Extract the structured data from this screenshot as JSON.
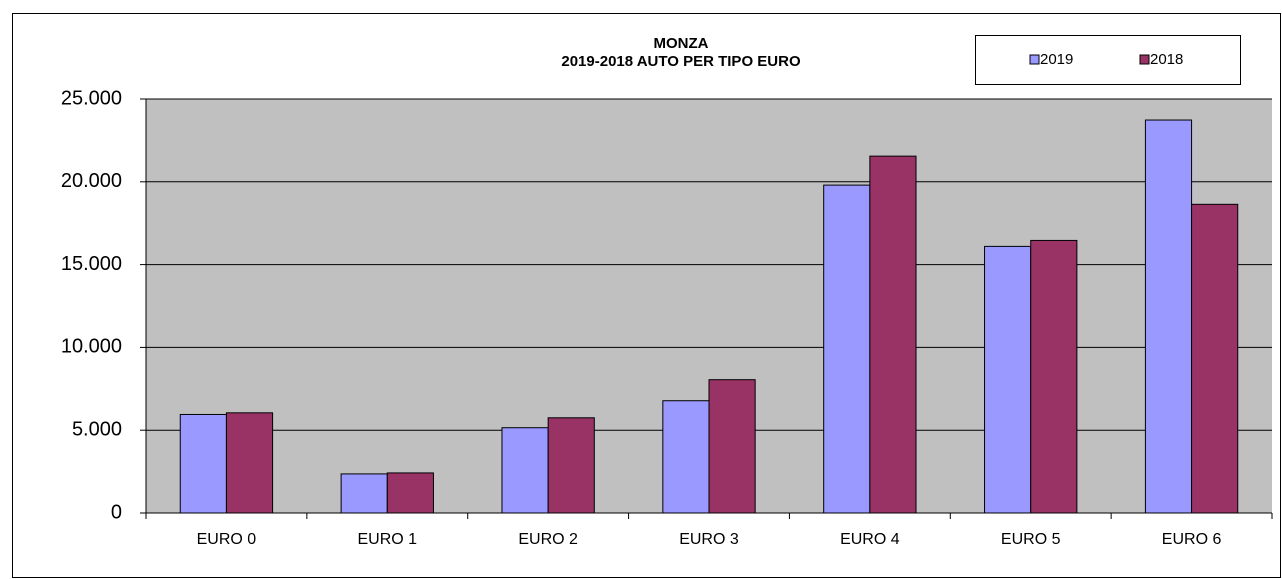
{
  "chart_data": {
    "type": "bar",
    "title": "MONZA",
    "subtitle": "2019-2018  AUTO PER TIPO EURO",
    "categories": [
      "EURO 0",
      "EURO 1",
      "EURO 2",
      "EURO 3",
      "EURO 4",
      "EURO 5",
      "EURO 6"
    ],
    "series": [
      {
        "name": "2019",
        "color": "#9999ff",
        "values": [
          5950,
          2360,
          5150,
          6780,
          19800,
          16100,
          23730
        ]
      },
      {
        "name": "2018",
        "color": "#993366",
        "values": [
          6050,
          2420,
          5750,
          8050,
          21550,
          16460,
          18640
        ]
      }
    ],
    "ylim": [
      0,
      25000
    ],
    "yticks": [
      0,
      {
        "value": 5000,
        "label": "5.000"
      },
      {
        "value": 10000,
        "label": "10.000"
      },
      {
        "value": 15000,
        "label": "15.000"
      },
      {
        "value": 20000,
        "label": "20.000"
      },
      {
        "value": 25000,
        "label": "25.000"
      }
    ],
    "grid": true,
    "plot_background": "#c0c0c0",
    "legend_position": "top-right"
  }
}
